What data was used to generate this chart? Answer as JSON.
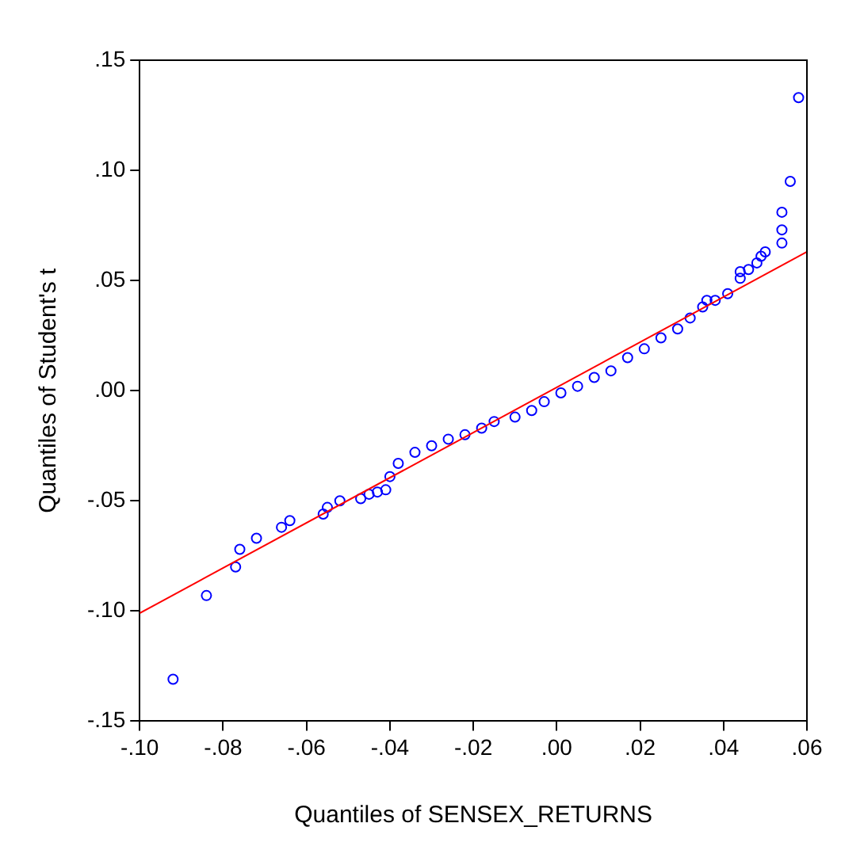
{
  "chart_data": {
    "type": "scatter",
    "xlabel": "Quantiles of SENSEX_RETURNS",
    "ylabel": "Quantiles of Student's t",
    "xlim": [
      -0.1,
      0.06
    ],
    "ylim": [
      -0.15,
      0.15
    ],
    "xticks": [
      {
        "value": -0.1,
        "label": "-.10"
      },
      {
        "value": -0.08,
        "label": "-.08"
      },
      {
        "value": -0.06,
        "label": "-.06"
      },
      {
        "value": -0.04,
        "label": "-.04"
      },
      {
        "value": -0.02,
        "label": "-.02"
      },
      {
        "value": 0,
        "label": ".00"
      },
      {
        "value": 0.02,
        "label": ".02"
      },
      {
        "value": 0.04,
        "label": ".04"
      },
      {
        "value": 0.06,
        "label": ".06"
      }
    ],
    "yticks": [
      {
        "value": -0.15,
        "label": "-.15"
      },
      {
        "value": -0.1,
        "label": "-.10"
      },
      {
        "value": -0.05,
        "label": "-.05"
      },
      {
        "value": 0,
        "label": ".00"
      },
      {
        "value": 0.05,
        "label": ".05"
      },
      {
        "value": 0.1,
        "label": ".10"
      },
      {
        "value": 0.15,
        "label": ".15"
      }
    ],
    "grid": false,
    "legend": false,
    "marker": "circle",
    "series": [
      {
        "type": "scatter",
        "color": "#0000ff",
        "x": [
          -0.092,
          -0.084,
          -0.077,
          -0.076,
          -0.072,
          -0.066,
          -0.064,
          -0.056,
          -0.055,
          -0.052,
          -0.047,
          -0.045,
          -0.043,
          -0.041,
          -0.04,
          -0.038,
          -0.034,
          -0.03,
          -0.026,
          -0.022,
          -0.018,
          -0.015,
          -0.01,
          -0.006,
          -0.003,
          0.001,
          0.005,
          0.009,
          0.013,
          0.017,
          0.021,
          0.025,
          0.029,
          0.032,
          0.035,
          0.036,
          0.038,
          0.041,
          0.044,
          0.044,
          0.046,
          0.048,
          0.049,
          0.05,
          0.054,
          0.054,
          0.054,
          0.056,
          0.058
        ],
        "values": [
          -0.131,
          -0.093,
          -0.08,
          -0.072,
          -0.067,
          -0.062,
          -0.059,
          -0.056,
          -0.053,
          -0.05,
          -0.049,
          -0.047,
          -0.046,
          -0.045,
          -0.039,
          -0.033,
          -0.028,
          -0.025,
          -0.022,
          -0.02,
          -0.017,
          -0.014,
          -0.012,
          -0.009,
          -0.005,
          -0.001,
          0.002,
          0.006,
          0.009,
          0.015,
          0.019,
          0.024,
          0.028,
          0.033,
          0.038,
          0.041,
          0.041,
          0.044,
          0.051,
          0.054,
          0.055,
          0.058,
          0.061,
          0.063,
          0.067,
          0.073,
          0.081,
          0.095,
          0.133
        ]
      },
      {
        "type": "line",
        "color": "#ff0000",
        "x": [
          -0.1,
          0.06
        ],
        "values": [
          -0.101,
          0.063
        ],
        "marker": "none",
        "line_style": "solid"
      }
    ]
  }
}
